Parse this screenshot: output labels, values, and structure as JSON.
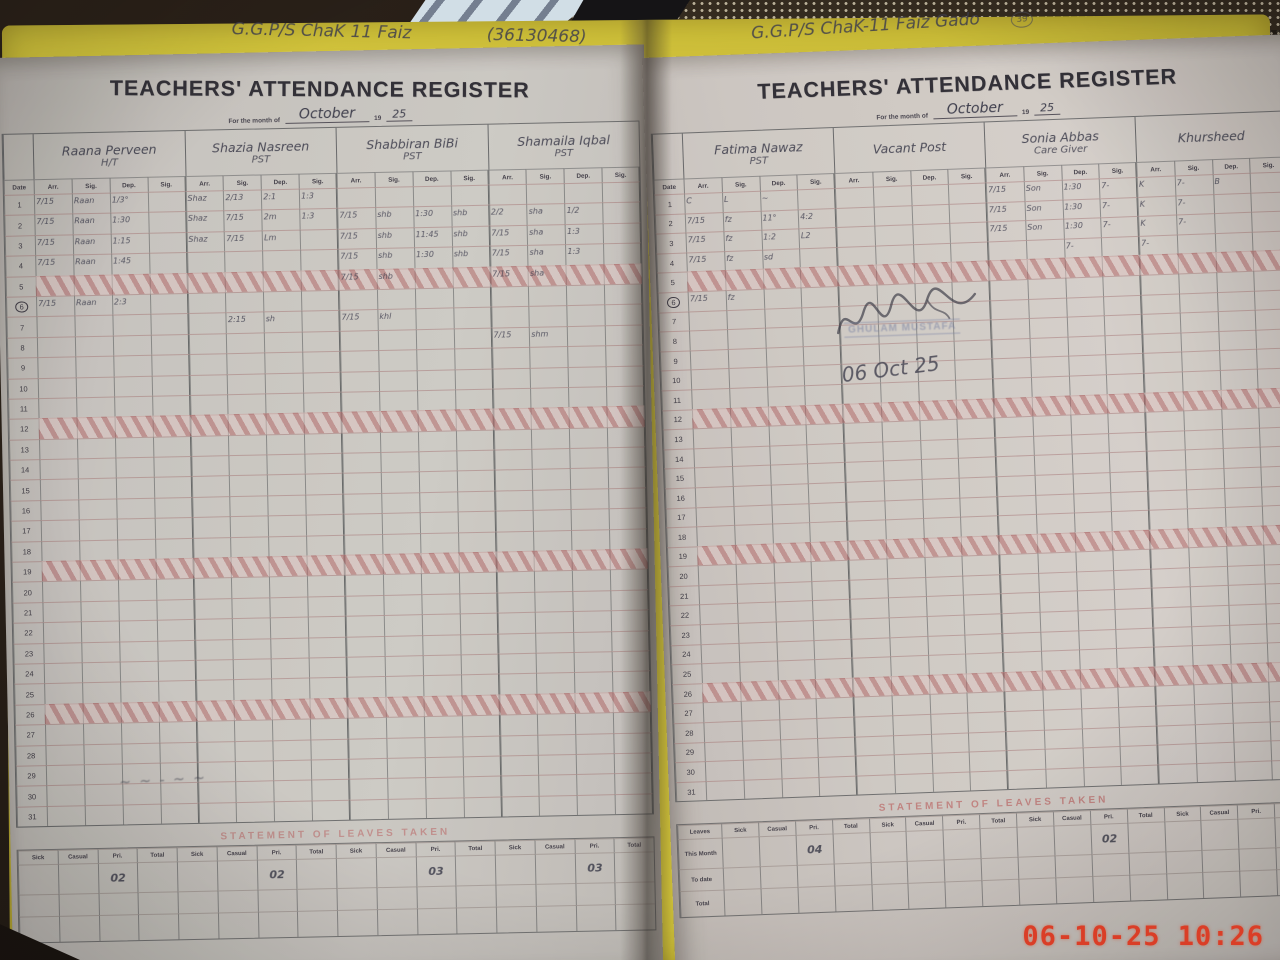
{
  "camera_timestamp": "06-10-25 10:26",
  "colors": {
    "cover_yellow": "#d4c52c",
    "timestamp_red": "#e8391f",
    "stamp_blue": "#8089a6",
    "sunday_pink": "#c98f8f",
    "leaves_title_red": "#bf4a4a"
  },
  "shared": {
    "title": "TEACHERS' ATTENDANCE REGISTER",
    "month_prefix": "For the month of",
    "year_printed": "19",
    "date_col": "Date",
    "subcols": [
      "Arr.",
      "Sig.",
      "Dep.",
      "Sig."
    ],
    "leaves_title": "STATEMENT OF LEAVES TAKEN",
    "leave_cols": [
      "Sick",
      "Casual",
      "Pri.",
      "Total"
    ],
    "num_rows": 31,
    "sunday_rows": [
      5,
      12,
      19,
      26
    ],
    "circled_row": 6
  },
  "left_page": {
    "school_heading": "G.G.P/S  ChaK  11 Faiz",
    "school_code": "(36130468)",
    "month": "October",
    "year": "25",
    "teachers": [
      {
        "name": "Raana Perveen",
        "role": "H/T"
      },
      {
        "name": "Shazia Nasreen",
        "role": "PST"
      },
      {
        "name": "Shabbiran BiBi",
        "role": "PST"
      },
      {
        "name": "Shamaila Iqbal",
        "role": "PST"
      }
    ],
    "entries": [
      {
        "r": 1,
        "c": 1,
        "t": "7/15"
      },
      {
        "r": 1,
        "c": 2,
        "t": "Raan"
      },
      {
        "r": 1,
        "c": 3,
        "t": "1/3°"
      },
      {
        "r": 1,
        "c": 5,
        "t": "Shaz"
      },
      {
        "r": 1,
        "c": 6,
        "t": "2/13"
      },
      {
        "r": 1,
        "c": 7,
        "t": "2:1"
      },
      {
        "r": 1,
        "c": 8,
        "t": "1:3"
      },
      {
        "r": 2,
        "c": 1,
        "t": "7/15"
      },
      {
        "r": 2,
        "c": 2,
        "t": "Raan"
      },
      {
        "r": 2,
        "c": 3,
        "t": "1:30"
      },
      {
        "r": 2,
        "c": 5,
        "t": "Shaz"
      },
      {
        "r": 2,
        "c": 6,
        "t": "7/15"
      },
      {
        "r": 2,
        "c": 7,
        "t": "2m"
      },
      {
        "r": 2,
        "c": 8,
        "t": "1:3"
      },
      {
        "r": 2,
        "c": 9,
        "t": "7/15"
      },
      {
        "r": 2,
        "c": 10,
        "t": "shb"
      },
      {
        "r": 2,
        "c": 11,
        "t": "1:30"
      },
      {
        "r": 2,
        "c": 12,
        "t": "shb"
      },
      {
        "r": 2,
        "c": 13,
        "t": "2/2"
      },
      {
        "r": 2,
        "c": 14,
        "t": "sha"
      },
      {
        "r": 2,
        "c": 15,
        "t": "1/2"
      },
      {
        "r": 3,
        "c": 1,
        "t": "7/15"
      },
      {
        "r": 3,
        "c": 2,
        "t": "Raan"
      },
      {
        "r": 3,
        "c": 3,
        "t": "1:15"
      },
      {
        "r": 3,
        "c": 5,
        "t": "Shaz"
      },
      {
        "r": 3,
        "c": 6,
        "t": "7/15"
      },
      {
        "r": 3,
        "c": 7,
        "t": "Lm"
      },
      {
        "r": 3,
        "c": 9,
        "t": "7/15"
      },
      {
        "r": 3,
        "c": 10,
        "t": "shb"
      },
      {
        "r": 3,
        "c": 11,
        "t": "11:45"
      },
      {
        "r": 3,
        "c": 12,
        "t": "shb"
      },
      {
        "r": 3,
        "c": 13,
        "t": "7/15"
      },
      {
        "r": 3,
        "c": 14,
        "t": "sha"
      },
      {
        "r": 3,
        "c": 15,
        "t": "1:3"
      },
      {
        "r": 4,
        "c": 1,
        "t": "7/15"
      },
      {
        "r": 4,
        "c": 2,
        "t": "Raan"
      },
      {
        "r": 4,
        "c": 3,
        "t": "1:45"
      },
      {
        "r": 4,
        "c": 9,
        "t": "7/15"
      },
      {
        "r": 4,
        "c": 10,
        "t": "shb"
      },
      {
        "r": 4,
        "c": 11,
        "t": "1:30"
      },
      {
        "r": 4,
        "c": 12,
        "t": "shb"
      },
      {
        "r": 4,
        "c": 13,
        "t": "7/15"
      },
      {
        "r": 4,
        "c": 14,
        "t": "sha"
      },
      {
        "r": 4,
        "c": 15,
        "t": "1:3"
      },
      {
        "r": 5,
        "c": 9,
        "t": "7/15"
      },
      {
        "r": 5,
        "c": 10,
        "t": "shb"
      },
      {
        "r": 5,
        "c": 13,
        "t": "7/15"
      },
      {
        "r": 5,
        "c": 14,
        "t": "sha"
      },
      {
        "r": 6,
        "c": 1,
        "t": "7/15"
      },
      {
        "r": 6,
        "c": 2,
        "t": "Raan"
      },
      {
        "r": 6,
        "c": 3,
        "t": "2:3"
      },
      {
        "r": 7,
        "c": 6,
        "t": "2:15"
      },
      {
        "r": 7,
        "c": 7,
        "t": "sh"
      },
      {
        "r": 7,
        "c": 9,
        "t": "7/15"
      },
      {
        "r": 7,
        "c": 10,
        "t": "khl"
      },
      {
        "r": 8,
        "c": 13,
        "t": "7/15"
      },
      {
        "r": 8,
        "c": 14,
        "t": "shm"
      }
    ],
    "leave_values": [
      "02",
      "02",
      "03",
      "03"
    ],
    "bottom_scribble": "~ ~ - ~      ~"
  },
  "right_page": {
    "school_heading": "G.G.P/S  ChaK-11 Faiz  Gado",
    "page_number": "39",
    "month": "October",
    "year": "25",
    "teachers": [
      {
        "name": "Fatima Nawaz",
        "role": "PST"
      },
      {
        "name": "Vacant Post",
        "role": ""
      },
      {
        "name": "Sonia Abbas",
        "role": "Care Giver"
      },
      {
        "name": "Khursheed",
        "role": ""
      }
    ],
    "entries": [
      {
        "r": 1,
        "c": 1,
        "t": "C"
      },
      {
        "r": 1,
        "c": 2,
        "t": "L"
      },
      {
        "r": 1,
        "c": 3,
        "t": "~"
      },
      {
        "r": 1,
        "c": 9,
        "t": "7/15"
      },
      {
        "r": 1,
        "c": 10,
        "t": "Son"
      },
      {
        "r": 1,
        "c": 11,
        "t": "1:30"
      },
      {
        "r": 1,
        "c": 12,
        "t": "7-"
      },
      {
        "r": 1,
        "c": 13,
        "t": "K"
      },
      {
        "r": 1,
        "c": 14,
        "t": "7-"
      },
      {
        "r": 1,
        "c": 15,
        "t": "B"
      },
      {
        "r": 2,
        "c": 1,
        "t": "7/15"
      },
      {
        "r": 2,
        "c": 2,
        "t": "fz"
      },
      {
        "r": 2,
        "c": 3,
        "t": "11°"
      },
      {
        "r": 2,
        "c": 4,
        "t": "4:2"
      },
      {
        "r": 2,
        "c": 9,
        "t": "7/15"
      },
      {
        "r": 2,
        "c": 10,
        "t": "Son"
      },
      {
        "r": 2,
        "c": 11,
        "t": "1:30"
      },
      {
        "r": 2,
        "c": 12,
        "t": "7-"
      },
      {
        "r": 2,
        "c": 13,
        "t": "K"
      },
      {
        "r": 2,
        "c": 14,
        "t": "7-"
      },
      {
        "r": 3,
        "c": 1,
        "t": "7/15"
      },
      {
        "r": 3,
        "c": 2,
        "t": "fz"
      },
      {
        "r": 3,
        "c": 3,
        "t": "1:2"
      },
      {
        "r": 3,
        "c": 4,
        "t": "L2"
      },
      {
        "r": 3,
        "c": 9,
        "t": "7/15"
      },
      {
        "r": 3,
        "c": 10,
        "t": "Son"
      },
      {
        "r": 3,
        "c": 11,
        "t": "1:30"
      },
      {
        "r": 3,
        "c": 12,
        "t": "7-"
      },
      {
        "r": 3,
        "c": 13,
        "t": "K"
      },
      {
        "r": 3,
        "c": 14,
        "t": "7-"
      },
      {
        "r": 4,
        "c": 1,
        "t": "7/15"
      },
      {
        "r": 4,
        "c": 2,
        "t": "fz"
      },
      {
        "r": 4,
        "c": 3,
        "t": "sd"
      },
      {
        "r": 4,
        "c": 11,
        "t": "7-"
      },
      {
        "r": 4,
        "c": 13,
        "t": "7-"
      },
      {
        "r": 6,
        "c": 1,
        "t": "7/15"
      },
      {
        "r": 6,
        "c": 2,
        "t": "fz"
      }
    ],
    "leaves_label_col": {
      "header": "Leaves",
      "rows": [
        "This Month",
        "To date",
        "Total"
      ]
    },
    "leave_values": [
      "04",
      "",
      "02",
      ""
    ],
    "stamp": {
      "line1": "GHULAM MUSTAFA",
      "date_written": "06 Oct 25"
    }
  }
}
